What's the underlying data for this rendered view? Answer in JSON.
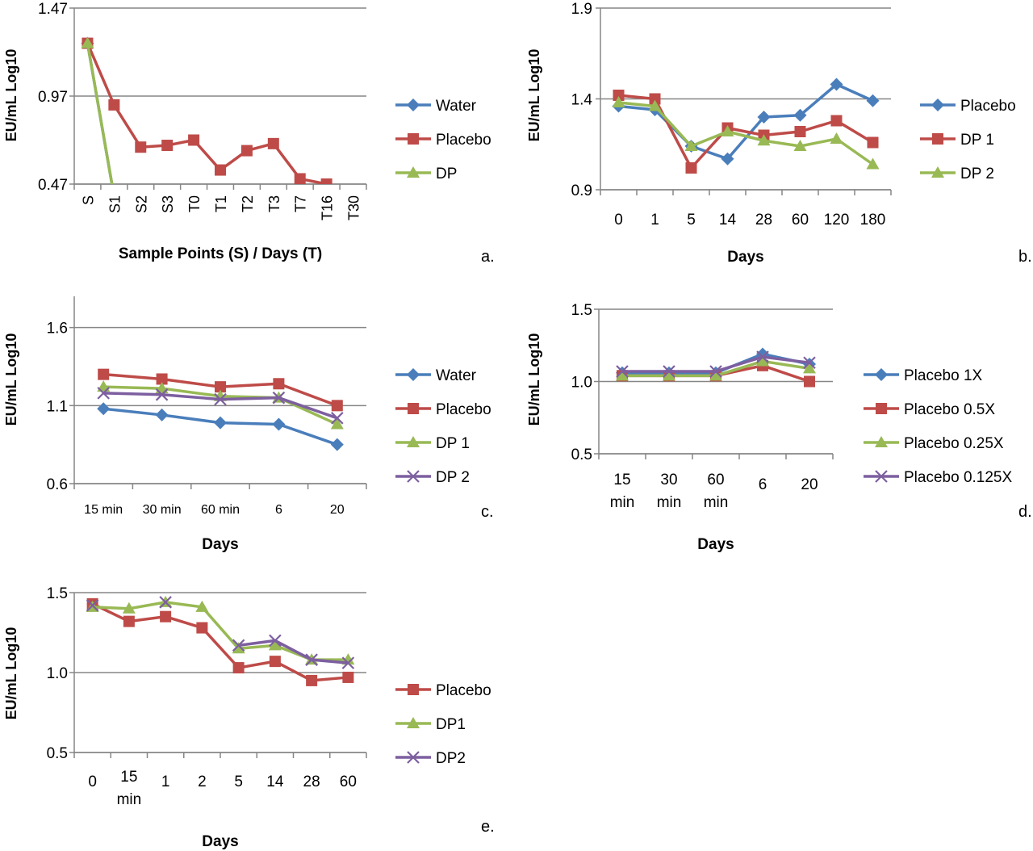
{
  "colors": {
    "blue": "#4a7ebb",
    "red": "#be4b48",
    "green": "#98b954",
    "purple": "#7d5fa0",
    "grid": "#868686",
    "axis": "#868686",
    "text": "#000000"
  },
  "chart_data": [
    {
      "type": "line",
      "panel_label": "a.",
      "ylabel": "EU/mL Log10",
      "xlabel": "Sample Points (S) / Days (T)",
      "categories": [
        "S",
        "S1",
        "S2",
        "S3",
        "T0",
        "T1",
        "T2",
        "T3",
        "T7",
        "T16",
        "T30"
      ],
      "ylim": [
        0.47,
        1.47
      ],
      "yticks": [
        "0.47",
        "0.97",
        "1.47"
      ],
      "rotate_x_labels": true,
      "legend_position": "right",
      "series": [
        {
          "name": "Water",
          "color": "blue",
          "marker": "diamond",
          "values": [
            1.27,
            0.4,
            null,
            null,
            null,
            null,
            null,
            null,
            null,
            null,
            null
          ]
        },
        {
          "name": "Placebo",
          "color": "red",
          "marker": "square",
          "values": [
            1.27,
            0.92,
            0.68,
            0.69,
            0.72,
            0.55,
            0.66,
            0.7,
            0.5,
            0.47,
            null
          ]
        },
        {
          "name": "DP",
          "color": "green",
          "marker": "triangle",
          "values": [
            1.27,
            0.4,
            null,
            null,
            null,
            null,
            null,
            null,
            null,
            null,
            null
          ]
        }
      ]
    },
    {
      "type": "line",
      "panel_label": "b.",
      "ylabel": "EU/mL Log10",
      "xlabel": "Days",
      "categories": [
        "0",
        "1",
        "5",
        "14",
        "28",
        "60",
        "120",
        "180"
      ],
      "ylim": [
        0.9,
        1.9
      ],
      "yticks": [
        "0.9",
        "1.4",
        "1.9"
      ],
      "rotate_x_labels": false,
      "legend_position": "right",
      "series": [
        {
          "name": "Placebo",
          "color": "blue",
          "marker": "diamond",
          "values": [
            1.36,
            1.34,
            1.14,
            1.07,
            1.3,
            1.31,
            1.48,
            1.39
          ]
        },
        {
          "name": "DP 1",
          "color": "red",
          "marker": "square",
          "values": [
            1.42,
            1.4,
            1.02,
            1.24,
            1.2,
            1.22,
            1.28,
            1.16
          ]
        },
        {
          "name": "DP 2",
          "color": "green",
          "marker": "triangle",
          "values": [
            1.38,
            1.36,
            1.14,
            1.22,
            1.17,
            1.14,
            1.18,
            1.04
          ]
        }
      ]
    },
    {
      "type": "line",
      "panel_label": "c.",
      "ylabel": "EU/mL Log10",
      "xlabel": "Days",
      "categories": [
        "15 min",
        "30 min",
        "60 min",
        "6",
        "20"
      ],
      "ylim": [
        0.6,
        1.8
      ],
      "yticks": [
        "0.6",
        "1.1",
        "1.6"
      ],
      "rotate_x_labels": false,
      "legend_position": "right",
      "series": [
        {
          "name": "Water",
          "color": "blue",
          "marker": "diamond",
          "values": [
            1.08,
            1.04,
            0.99,
            0.98,
            0.85
          ]
        },
        {
          "name": "Placebo",
          "color": "red",
          "marker": "square",
          "values": [
            1.3,
            1.27,
            1.22,
            1.24,
            1.1
          ]
        },
        {
          "name": "DP 1",
          "color": "green",
          "marker": "triangle",
          "values": [
            1.22,
            1.21,
            1.16,
            1.15,
            0.98
          ]
        },
        {
          "name": "DP 2",
          "color": "purple",
          "marker": "x",
          "values": [
            1.18,
            1.17,
            1.14,
            1.15,
            1.02
          ]
        }
      ]
    },
    {
      "type": "line",
      "panel_label": "d.",
      "ylabel": "EU/mL Log10",
      "xlabel": "Days",
      "categories": [
        "15 min",
        "30 min",
        "60 min",
        "6",
        "20"
      ],
      "ylim": [
        0.5,
        1.5
      ],
      "yticks": [
        "0.5",
        "1.0",
        "1.5"
      ],
      "rotate_x_labels": false,
      "legend_position": "right",
      "series": [
        {
          "name": "Placebo 1X",
          "color": "blue",
          "marker": "diamond",
          "values": [
            1.06,
            1.06,
            1.06,
            1.19,
            1.12
          ]
        },
        {
          "name": "Placebo 0.5X",
          "color": "red",
          "marker": "square",
          "values": [
            1.04,
            1.04,
            1.04,
            1.11,
            1.0
          ]
        },
        {
          "name": "Placebo 0.25X",
          "color": "green",
          "marker": "triangle",
          "values": [
            1.04,
            1.04,
            1.04,
            1.14,
            1.09
          ]
        },
        {
          "name": "Placebo 0.125X",
          "color": "purple",
          "marker": "x",
          "values": [
            1.07,
            1.07,
            1.07,
            1.17,
            1.13
          ]
        }
      ]
    },
    {
      "type": "line",
      "panel_label": "e.",
      "ylabel": "EU/mL Log10",
      "xlabel": "Days",
      "categories": [
        "0",
        "15 min",
        "1",
        "2",
        "5",
        "14",
        "28",
        "60"
      ],
      "ylim": [
        0.5,
        1.5
      ],
      "yticks": [
        "0.5",
        "1.0",
        "1.5"
      ],
      "rotate_x_labels": false,
      "legend_position": "right",
      "series": [
        {
          "name": "Placebo",
          "color": "red",
          "marker": "square",
          "values": [
            1.43,
            1.32,
            1.35,
            1.28,
            1.03,
            1.07,
            0.95,
            0.97
          ]
        },
        {
          "name": "DP1",
          "color": "green",
          "marker": "triangle",
          "values": [
            1.41,
            1.4,
            1.44,
            1.41,
            1.15,
            1.17,
            1.08,
            1.08
          ]
        },
        {
          "name": "DP2",
          "color": "purple",
          "marker": "x",
          "values": [
            1.42,
            null,
            1.44,
            null,
            1.17,
            1.2,
            1.08,
            1.06
          ]
        }
      ]
    }
  ]
}
